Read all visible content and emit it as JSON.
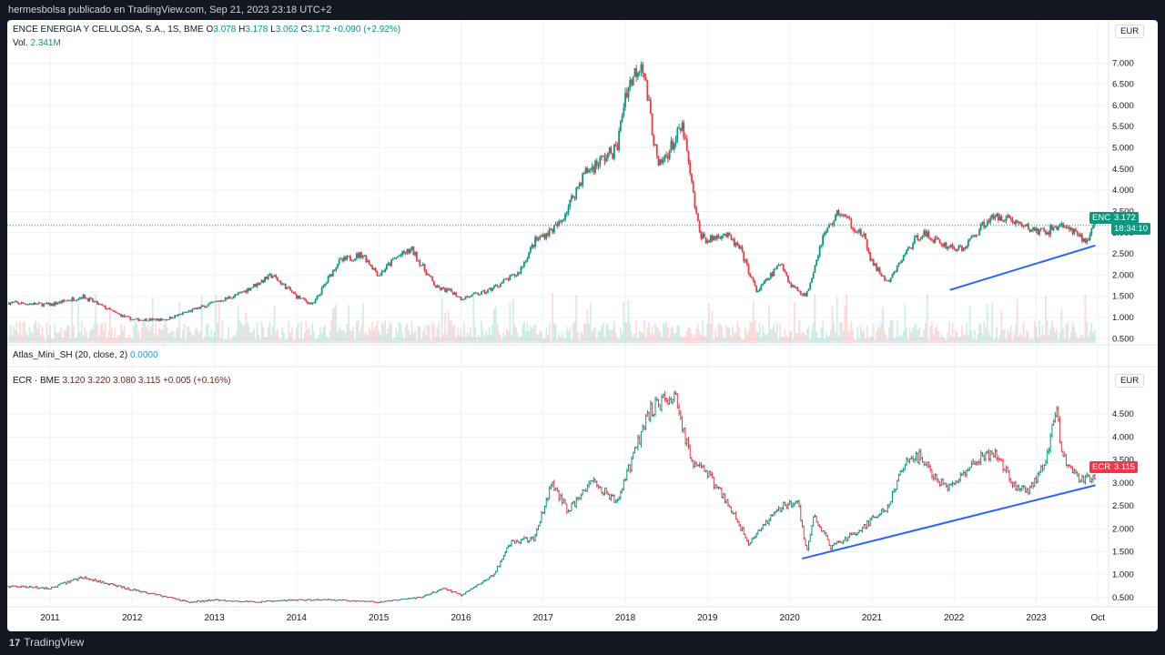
{
  "header": {
    "publisher": "hermesbolsa publicado en TradingView.com, Sep 21, 2023 23:18 UTC+2"
  },
  "top_legend": {
    "name": "ENCE ENERGIA Y CELULOSA, S.A., 1S, BME",
    "o_label": "O",
    "o": "3.078",
    "h_label": "H",
    "h": "3.178",
    "l_label": "L",
    "l": "3.062",
    "c_label": "C",
    "c": "3.172",
    "change": "+0.090 (+2.92%)",
    "vol_label": "Vol.",
    "vol": "2.341M"
  },
  "indicator_legend": {
    "name": "Atlas_Mini_SH (20, close, 2)",
    "value": "0.0000"
  },
  "bottom_legend": {
    "name": "ECR · BME",
    "o": "3.120",
    "h": "3.220",
    "l": "3.080",
    "c": "3.115",
    "change": "+0.005 (+0.16%)"
  },
  "currency": "EUR",
  "top_tag": {
    "symbol": "ENC",
    "price": "3.172",
    "countdown": "18:34:10"
  },
  "bottom_tag": {
    "symbol": "ECR",
    "price": "3.115"
  },
  "footer": {
    "brand": "TradingView"
  },
  "colors": {
    "up": "#089981",
    "down": "#f23645",
    "trendline": "#2962ff",
    "grid": "#f0f3fa"
  },
  "chart_data": [
    {
      "type": "line",
      "title": "ENCE ENERGIA Y CELULOSA, S.A., 1S, BME",
      "ylabel": "EUR",
      "ylim": [
        0.4,
        7.5
      ],
      "y_ticks": [
        "7.000",
        "6.500",
        "6.000",
        "5.500",
        "5.000",
        "4.500",
        "4.000",
        "3.500",
        "3.000",
        "2.500",
        "2.000",
        "1.500",
        "1.000",
        "0.500"
      ],
      "x": [
        2010.5,
        2011.0,
        2011.4,
        2011.8,
        2012.0,
        2012.4,
        2012.7,
        2013.0,
        2013.3,
        2013.7,
        2014.0,
        2014.2,
        2014.5,
        2014.8,
        2015.0,
        2015.2,
        2015.4,
        2015.7,
        2015.9,
        2016.0,
        2016.3,
        2016.7,
        2016.9,
        2017.2,
        2017.5,
        2017.9,
        2018.0,
        2018.2,
        2018.4,
        2018.7,
        2018.8,
        2018.9,
        2019.0,
        2019.2,
        2019.4,
        2019.6,
        2019.9,
        2020.0,
        2020.2,
        2020.4,
        2020.6,
        2020.9,
        2021.0,
        2021.2,
        2021.4,
        2021.6,
        2021.9,
        2022.1,
        2022.4,
        2022.6,
        2022.9,
        2023.1,
        2023.3,
        2023.6,
        2023.72
      ],
      "series": [
        {
          "values": [
            1.35,
            1.3,
            1.5,
            1.1,
            0.95,
            0.95,
            1.15,
            1.35,
            1.55,
            2.0,
            1.5,
            1.3,
            2.3,
            2.5,
            2.0,
            2.4,
            2.6,
            1.7,
            1.6,
            1.45,
            1.6,
            2.05,
            2.8,
            3.2,
            4.4,
            5.0,
            6.3,
            7.1,
            4.5,
            5.5,
            4.2,
            3.0,
            2.8,
            3.0,
            2.6,
            1.6,
            2.3,
            1.8,
            1.5,
            2.9,
            3.5,
            2.9,
            2.3,
            1.8,
            2.5,
            3.0,
            2.7,
            2.6,
            3.3,
            3.4,
            3.1,
            3.0,
            3.2,
            2.8,
            3.17
          ]
        }
      ],
      "volume_axis": "shared",
      "trendline": {
        "from": [
          2021.95,
          1.65
        ],
        "to": [
          2023.72,
          2.7
        ]
      },
      "last_price": 3.172
    },
    {
      "type": "line",
      "title": "ECR · BME",
      "ylabel": "EUR",
      "ylim": [
        0.3,
        5.0
      ],
      "y_ticks": [
        "4.500",
        "4.000",
        "3.500",
        "3.000",
        "2.500",
        "2.000",
        "1.500",
        "1.000",
        "0.500"
      ],
      "x": [
        2010.5,
        2011.0,
        2011.4,
        2011.8,
        2012.2,
        2012.7,
        2013.0,
        2013.5,
        2014.0,
        2014.5,
        2015.0,
        2015.5,
        2015.8,
        2016.0,
        2016.4,
        2016.6,
        2016.9,
        2017.1,
        2017.3,
        2017.6,
        2017.9,
        2018.1,
        2018.3,
        2018.6,
        2018.8,
        2019.0,
        2019.2,
        2019.5,
        2019.7,
        2019.9,
        2020.1,
        2020.2,
        2020.3,
        2020.5,
        2020.8,
        2021.0,
        2021.2,
        2021.4,
        2021.6,
        2021.8,
        2022.0,
        2022.2,
        2022.5,
        2022.7,
        2022.9,
        2023.1,
        2023.25,
        2023.3,
        2023.5,
        2023.72
      ],
      "series": [
        {
          "values": [
            0.75,
            0.7,
            0.95,
            0.75,
            0.6,
            0.4,
            0.45,
            0.4,
            0.45,
            0.45,
            0.4,
            0.5,
            0.7,
            0.55,
            1.0,
            1.7,
            1.8,
            3.0,
            2.4,
            3.0,
            2.6,
            3.6,
            4.6,
            4.9,
            3.5,
            3.2,
            2.7,
            1.7,
            2.1,
            2.5,
            2.6,
            1.5,
            2.3,
            1.6,
            1.9,
            2.2,
            2.5,
            3.4,
            3.6,
            3.0,
            2.9,
            3.4,
            3.7,
            3.0,
            2.8,
            3.4,
            4.6,
            3.7,
            3.1,
            3.115
          ]
        }
      ],
      "trendline": {
        "from": [
          2020.15,
          1.35
        ],
        "to": [
          2023.72,
          2.95
        ]
      },
      "last_price": 3.115
    }
  ],
  "x_ticks": [
    "2011",
    "2012",
    "2013",
    "2014",
    "2015",
    "2016",
    "2017",
    "2018",
    "2019",
    "2020",
    "2021",
    "2022",
    "2023",
    "Oct"
  ]
}
